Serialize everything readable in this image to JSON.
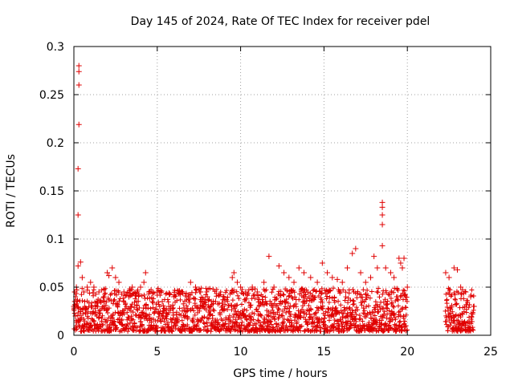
{
  "chart_data": {
    "type": "scatter",
    "title": "Day 145 of 2024, Rate Of TEC Index for receiver pdel",
    "xlabel": "GPS time / hours",
    "ylabel": "ROTI / TECUs",
    "xlim": [
      0,
      25
    ],
    "ylim": [
      0,
      0.3
    ],
    "x_ticks": [
      "0",
      "5",
      "10",
      "15",
      "20",
      "25"
    ],
    "y_ticks": [
      "0",
      "0.05",
      "0.1",
      "0.15",
      "0.2",
      "0.25",
      "0.3"
    ],
    "grid": true,
    "marker": "plus",
    "color": "#e00000",
    "series": [
      {
        "points": [
          [
            0.0,
            0.03
          ],
          [
            0.05,
            0.045
          ],
          [
            0.1,
            0.02
          ],
          [
            0.15,
            0.05
          ],
          [
            0.2,
            0.035
          ],
          [
            0.3,
            0.28
          ],
          [
            0.3,
            0.274
          ],
          [
            0.3,
            0.26
          ],
          [
            0.3,
            0.219
          ],
          [
            0.25,
            0.173
          ],
          [
            0.25,
            0.125
          ],
          [
            0.25,
            0.072
          ],
          [
            0.4,
            0.076
          ],
          [
            0.5,
            0.06
          ],
          [
            0.6,
            0.045
          ],
          [
            0.8,
            0.05
          ],
          [
            1.0,
            0.055
          ],
          [
            1.2,
            0.05
          ],
          [
            1.5,
            0.045
          ],
          [
            1.8,
            0.04
          ],
          [
            2.0,
            0.065
          ],
          [
            2.1,
            0.062
          ],
          [
            2.3,
            0.07
          ],
          [
            2.5,
            0.06
          ],
          [
            2.7,
            0.055
          ],
          [
            3.0,
            0.045
          ],
          [
            3.3,
            0.04
          ],
          [
            3.5,
            0.05
          ],
          [
            3.8,
            0.045
          ],
          [
            4.0,
            0.05
          ],
          [
            4.2,
            0.055
          ],
          [
            4.3,
            0.065
          ],
          [
            4.5,
            0.045
          ],
          [
            4.7,
            0.035
          ],
          [
            5.0,
            0.045
          ],
          [
            5.3,
            0.035
          ],
          [
            5.7,
            0.03
          ],
          [
            6.0,
            0.04
          ],
          [
            6.5,
            0.045
          ],
          [
            7.0,
            0.055
          ],
          [
            7.3,
            0.05
          ],
          [
            7.6,
            0.045
          ],
          [
            8.0,
            0.04
          ],
          [
            8.5,
            0.035
          ],
          [
            9.0,
            0.04
          ],
          [
            9.5,
            0.06
          ],
          [
            9.6,
            0.065
          ],
          [
            9.8,
            0.055
          ],
          [
            10.0,
            0.05
          ],
          [
            10.3,
            0.045
          ],
          [
            10.7,
            0.05
          ],
          [
            11.0,
            0.045
          ],
          [
            11.4,
            0.055
          ],
          [
            11.7,
            0.082
          ],
          [
            12.0,
            0.05
          ],
          [
            12.3,
            0.072
          ],
          [
            12.6,
            0.065
          ],
          [
            12.9,
            0.06
          ],
          [
            13.2,
            0.055
          ],
          [
            13.5,
            0.07
          ],
          [
            13.8,
            0.065
          ],
          [
            14.2,
            0.06
          ],
          [
            14.6,
            0.055
          ],
          [
            14.9,
            0.075
          ],
          [
            15.2,
            0.065
          ],
          [
            15.5,
            0.06
          ],
          [
            15.8,
            0.058
          ],
          [
            16.1,
            0.055
          ],
          [
            16.4,
            0.07
          ],
          [
            16.7,
            0.085
          ],
          [
            16.9,
            0.09
          ],
          [
            17.2,
            0.065
          ],
          [
            17.5,
            0.055
          ],
          [
            17.8,
            0.06
          ],
          [
            18.0,
            0.082
          ],
          [
            18.2,
            0.07
          ],
          [
            18.5,
            0.138
          ],
          [
            18.5,
            0.133
          ],
          [
            18.5,
            0.125
          ],
          [
            18.5,
            0.115
          ],
          [
            18.5,
            0.093
          ],
          [
            18.7,
            0.07
          ],
          [
            19.0,
            0.065
          ],
          [
            19.2,
            0.06
          ],
          [
            19.5,
            0.08
          ],
          [
            19.6,
            0.075
          ],
          [
            19.7,
            0.07
          ],
          [
            19.8,
            0.08
          ],
          [
            20.0,
            0.05
          ],
          [
            22.3,
            0.065
          ],
          [
            22.5,
            0.06
          ],
          [
            22.8,
            0.07
          ],
          [
            23.0,
            0.068
          ],
          [
            23.2,
            0.05
          ],
          [
            23.5,
            0.045
          ],
          [
            23.8,
            0.04
          ],
          [
            24.0,
            0.03
          ]
        ]
      }
    ]
  }
}
